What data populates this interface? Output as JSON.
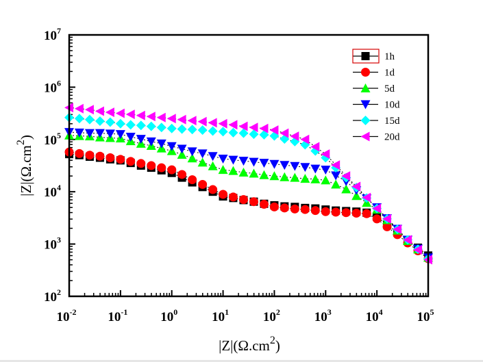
{
  "chart_data": {
    "type": "scatter",
    "title": "",
    "xlabel": "|Z|(Ω.cm²)",
    "xlabel_parts": {
      "main": "|Z|(Ω.cm",
      "sup": "2",
      "close": ")"
    },
    "ylabel": "|Z|(Ω.cm²)",
    "ylabel_parts": {
      "main": "|Z|(Ω.cm",
      "sup": "2",
      "close": ")"
    },
    "xscale": "log",
    "yscale": "log",
    "xlim": [
      0.01,
      100000
    ],
    "ylim": [
      100,
      10000000
    ],
    "grid": false,
    "legend_position": "top-right",
    "x_ticks": [
      {
        "base": "10",
        "exp": "-2",
        "value": 0.01
      },
      {
        "base": "10",
        "exp": "-1",
        "value": 0.1
      },
      {
        "base": "10",
        "exp": "0",
        "value": 1
      },
      {
        "base": "10",
        "exp": "1",
        "value": 10
      },
      {
        "base": "10",
        "exp": "2",
        "value": 100
      },
      {
        "base": "10",
        "exp": "3",
        "value": 1000
      },
      {
        "base": "10",
        "exp": "4",
        "value": 10000
      },
      {
        "base": "10",
        "exp": "5",
        "value": 100000
      }
    ],
    "y_ticks": [
      {
        "base": "10",
        "exp": "2",
        "value": 100
      },
      {
        "base": "10",
        "exp": "3",
        "value": 1000
      },
      {
        "base": "10",
        "exp": "4",
        "value": 10000
      },
      {
        "base": "10",
        "exp": "5",
        "value": 100000
      },
      {
        "base": "10",
        "exp": "6",
        "value": 1000000
      },
      {
        "base": "10",
        "exp": "7",
        "value": 10000000
      }
    ],
    "x": [
      0.01,
      0.0158,
      0.0251,
      0.0398,
      0.0631,
      0.1,
      0.158,
      0.251,
      0.398,
      0.631,
      1,
      1.58,
      2.51,
      3.98,
      6.31,
      10,
      15.8,
      25.1,
      39.8,
      63.1,
      100,
      158,
      251,
      398,
      631,
      1000,
      1580,
      2510,
      3980,
      6310,
      10000,
      15800,
      25100,
      39800,
      63100,
      100000
    ],
    "series": [
      {
        "name": "1h",
        "marker": "square",
        "color": "#000000",
        "values": [
          52500,
          50100,
          46800,
          44700,
          41700,
          39800,
          35500,
          31600,
          28800,
          25700,
          22900,
          18600,
          15100,
          12300,
          10000,
          8130,
          7590,
          6920,
          6460,
          5890,
          5500,
          5250,
          5130,
          4900,
          4790,
          4570,
          4370,
          4270,
          4170,
          3980,
          3310,
          2340,
          1660,
          1200,
          851,
          603
        ]
      },
      {
        "name": "1d",
        "marker": "circle",
        "color": "#ff0000",
        "values": [
          57500,
          53700,
          50100,
          47900,
          44700,
          41700,
          38000,
          34700,
          31600,
          28800,
          26300,
          21400,
          17000,
          13800,
          11000,
          8910,
          7940,
          7080,
          6460,
          5750,
          5130,
          4900,
          4680,
          4570,
          4370,
          4170,
          4070,
          3980,
          3890,
          3800,
          3020,
          2140,
          1510,
          1050,
          741,
          525
        ]
      },
      {
        "name": "5d",
        "marker": "triangle-up",
        "color": "#00ff00",
        "values": [
          120000,
          117000,
          115000,
          110000,
          107000,
          105000,
          93300,
          83200,
          75900,
          67600,
          60300,
          51300,
          43700,
          36300,
          30900,
          26300,
          25100,
          23400,
          22400,
          20900,
          20000,
          19100,
          18600,
          17800,
          17400,
          16600,
          13800,
          11200,
          8320,
          6170,
          4570,
          2880,
          1820,
          1150,
          794,
          550
        ]
      },
      {
        "name": "10d",
        "marker": "triangle-down",
        "color": "#0000ff",
        "values": [
          138000,
          135000,
          132000,
          132000,
          129000,
          126000,
          112000,
          102000,
          91200,
          83200,
          74100,
          66100,
          58900,
          53700,
          47900,
          42700,
          40700,
          38900,
          37200,
          35500,
          33900,
          32400,
          30900,
          29500,
          27500,
          26300,
          20400,
          15800,
          10700,
          7410,
          5010,
          3090,
          1950,
          1200,
          813,
          550
        ]
      },
      {
        "name": "15d",
        "marker": "diamond",
        "color": "#00ffff",
        "values": [
          263000,
          251000,
          240000,
          224000,
          214000,
          200000,
          191000,
          186000,
          178000,
          170000,
          162000,
          158000,
          155000,
          151000,
          145000,
          141000,
          135000,
          132000,
          126000,
          123000,
          117000,
          102000,
          91200,
          79400,
          60300,
          44700,
          28800,
          18600,
          12000,
          7590,
          4790,
          3020,
          1910,
          1200,
          794,
          525
        ]
      },
      {
        "name": "20d",
        "marker": "triangle-left",
        "color": "#ff00ff",
        "values": [
          407000,
          389000,
          372000,
          347000,
          331000,
          316000,
          302000,
          288000,
          275000,
          263000,
          251000,
          240000,
          229000,
          219000,
          209000,
          200000,
          191000,
          178000,
          170000,
          162000,
          151000,
          132000,
          115000,
          100000,
          72400,
          52500,
          32400,
          20000,
          12600,
          7760,
          4790,
          3020,
          1910,
          1200,
          776,
          501
        ]
      }
    ],
    "legend_highlight_color": "#d40000"
  }
}
